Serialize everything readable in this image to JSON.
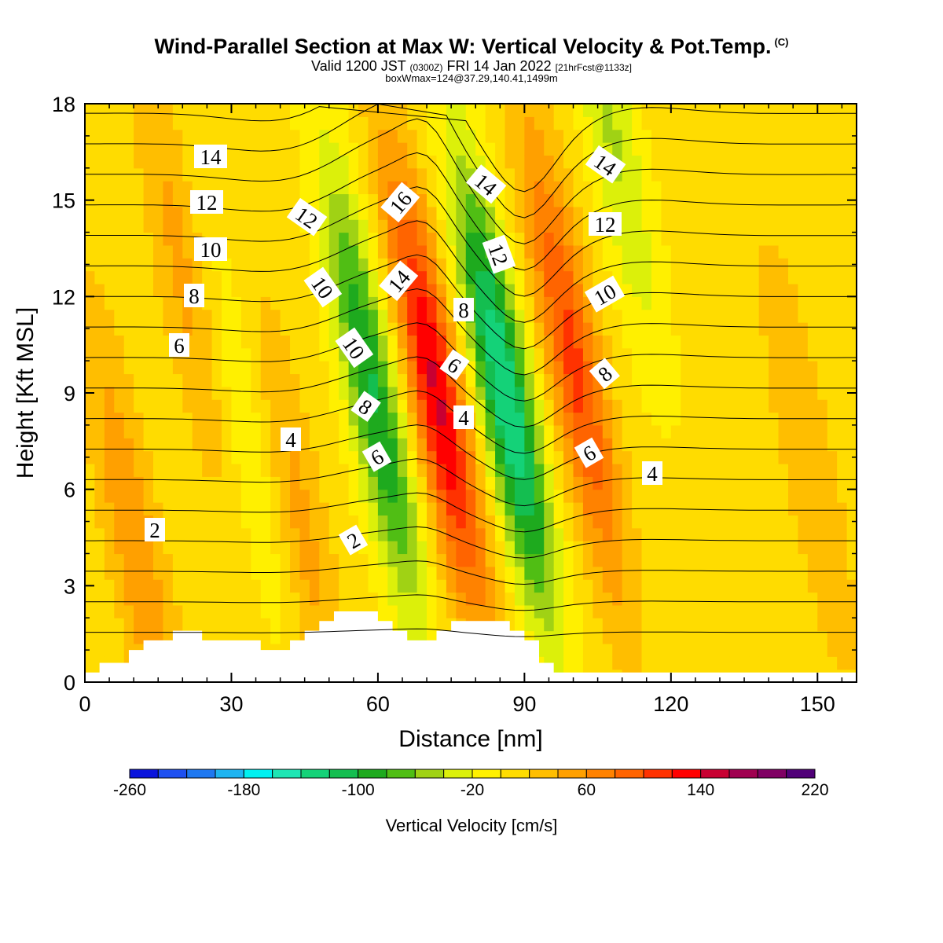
{
  "header": {
    "title": "Wind-Parallel Section at Max W: Vertical Velocity & Pot.Temp.",
    "copyright": "(C)",
    "valid_prefix": "Valid 1200 JST",
    "utc": "(0300Z)",
    "valid_date": "FRI 14 Jan 2022",
    "forecast": "[21hrFcst@1133z]",
    "box_info": "boxWmax=124@37.29,140.41,1499m"
  },
  "chart_data": {
    "type": "heatmap",
    "xlabel": "Distance [nm]",
    "ylabel": "Height [Kft MSL]",
    "xlim": [
      0,
      158
    ],
    "ylim": [
      0,
      18
    ],
    "xticks": [
      0,
      30,
      60,
      90,
      120,
      150
    ],
    "yticks": [
      0,
      3,
      6,
      9,
      12,
      15,
      18
    ],
    "colorbar": {
      "title": "Vertical Velocity [cm/s]",
      "range": [
        -260,
        220
      ],
      "step": 20,
      "tick_labels": [
        "-260",
        "-180",
        "-100",
        "-20",
        "60",
        "140",
        "220"
      ],
      "colors": [
        "#0a14dc",
        "#1e50f0",
        "#1e78f0",
        "#1eb4f0",
        "#00f0f0",
        "#1ee6b4",
        "#14d278",
        "#14be50",
        "#1eaa1e",
        "#50be14",
        "#a0d214",
        "#dcf00a",
        "#fff000",
        "#ffdc00",
        "#ffbe00",
        "#ffa000",
        "#ff8200",
        "#ff6400",
        "#ff3200",
        "#ff0000",
        "#c80032",
        "#a00050",
        "#800064",
        "#500078"
      ]
    },
    "velocity_features": [
      {
        "kind": "updraft",
        "center_km": [
          10,
          4.5
        ],
        "peak": 50
      },
      {
        "kind": "updraft",
        "center_km": [
          20,
          13
        ],
        "peak": 40
      },
      {
        "kind": "downdraft",
        "center_km": [
          33,
          8
        ],
        "peak": -30
      },
      {
        "kind": "updraft",
        "center_km": [
          44,
          5
        ],
        "peak": 40
      },
      {
        "kind": "downdraft",
        "center_km": [
          59,
          9
        ],
        "peak": -110,
        "label": "green/teal band"
      },
      {
        "kind": "updraft",
        "center_km": [
          72,
          9
        ],
        "peak": 135,
        "label": "red band"
      },
      {
        "kind": "downdraft",
        "center_km": [
          86,
          9
        ],
        "peak": -150,
        "label": "green/teal band"
      },
      {
        "kind": "updraft",
        "center_km": [
          100,
          10
        ],
        "peak": 100
      },
      {
        "kind": "downdraft",
        "center_km": [
          108,
          17
        ],
        "peak": -50
      },
      {
        "kind": "updraft",
        "center_km": [
          148,
          7
        ],
        "peak": 30
      }
    ],
    "theta_contour_labels": [
      "2",
      "4",
      "6",
      "8",
      "10",
      "12",
      "14",
      "16"
    ],
    "theta_levels_c": [
      1,
      2,
      3,
      4,
      5,
      6,
      7,
      8,
      9,
      10,
      11,
      12,
      13,
      14,
      15,
      16,
      17,
      18
    ],
    "terrain_kft": [
      0.3,
      0.6,
      0.6,
      1.0,
      1.3,
      1.3,
      1.6,
      1.6,
      1.3,
      1.3,
      1.3,
      1.3,
      1.0,
      1.0,
      1.3,
      1.6,
      1.9,
      2.2,
      2.2,
      2.2,
      1.9,
      1.6,
      1.3,
      1.3,
      1.6,
      1.9,
      1.9,
      1.9,
      1.9,
      1.6,
      1.3,
      0.6,
      0.3,
      0.3,
      0.3,
      0.3,
      0.3,
      0.3,
      0.3,
      0.3,
      0.3,
      0.3,
      0.3,
      0.3,
      0.3,
      0.3,
      0.3,
      0.3,
      0.3,
      0.3
    ],
    "terrain_x_nm": [
      0,
      3,
      6,
      9,
      12,
      15,
      18,
      21,
      24,
      27,
      30,
      33,
      36,
      39,
      42,
      45,
      48,
      51,
      54,
      57,
      60,
      63,
      66,
      69,
      72,
      75,
      78,
      81,
      84,
      87,
      90,
      93,
      96,
      99,
      102,
      105,
      108,
      111,
      114,
      117,
      120,
      123,
      126,
      129,
      132,
      135,
      138,
      141,
      144,
      147
    ]
  }
}
